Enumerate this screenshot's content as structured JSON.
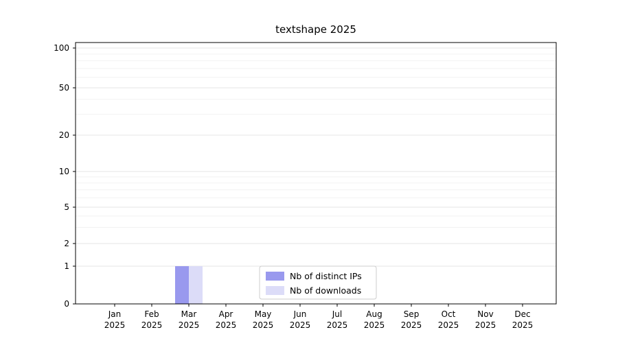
{
  "chart_data": {
    "type": "bar",
    "title": "textshape 2025",
    "categories": [
      "Jan",
      "Feb",
      "Mar",
      "Apr",
      "May",
      "Jun",
      "Jul",
      "Aug",
      "Sep",
      "Oct",
      "Nov",
      "Dec"
    ],
    "x_year": "2025",
    "series": [
      {
        "name": "Nb of distinct IPs",
        "color": "#9999ee",
        "values": [
          0,
          0,
          1,
          0,
          0,
          0,
          0,
          0,
          0,
          0,
          0,
          0
        ]
      },
      {
        "name": "Nb of downloads",
        "color": "#dcdcf8",
        "values": [
          0,
          0,
          1,
          0,
          0,
          0,
          0,
          0,
          0,
          0,
          0,
          0
        ]
      }
    ],
    "yticks": [
      0,
      1,
      2,
      5,
      10,
      20,
      50,
      100
    ],
    "yscale": "symlog",
    "ylim": [
      0,
      110
    ],
    "xlabel": "",
    "ylabel": "",
    "grid": true,
    "legend": {
      "position": "bottom-center",
      "entries": [
        "Nb of distinct IPs",
        "Nb of downloads"
      ]
    },
    "colors": {
      "axis": "#000000",
      "grid_major": "#e6e6e6",
      "grid_minor": "#f2f2f2",
      "background": "#ffffff",
      "legend_border": "#cccccc"
    }
  }
}
